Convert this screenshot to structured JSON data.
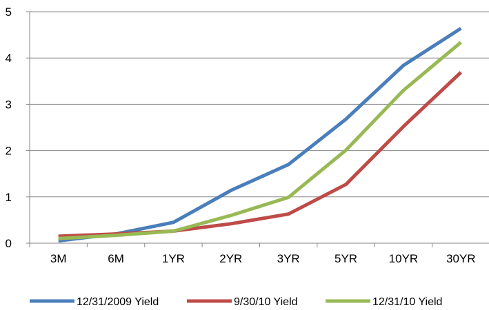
{
  "chart_data": {
    "type": "line",
    "categories": [
      "3M",
      "6M",
      "1YR",
      "2YR",
      "3YR",
      "5YR",
      "10YR",
      "30YR"
    ],
    "ylim": [
      0,
      5
    ],
    "yticks": [
      "0",
      "1",
      "2",
      "3",
      "4",
      "5"
    ],
    "ytick_values": [
      0,
      1,
      2,
      3,
      4,
      5
    ],
    "grid": true,
    "legend_position": "bottom",
    "series": [
      {
        "name": "12/31/2009 Yield",
        "color": "#4a7ebb",
        "values": [
          0.05,
          0.2,
          0.45,
          1.14,
          1.7,
          2.68,
          3.84,
          4.64
        ]
      },
      {
        "name": "9/30/10 Yield",
        "color": "#be4b48",
        "values": [
          0.15,
          0.2,
          0.26,
          0.42,
          0.63,
          1.27,
          2.52,
          3.69
        ]
      },
      {
        "name": "12/31/10 Yield",
        "color": "#98b954",
        "values": [
          0.1,
          0.17,
          0.26,
          0.6,
          0.99,
          2.01,
          3.3,
          4.34
        ]
      }
    ]
  }
}
